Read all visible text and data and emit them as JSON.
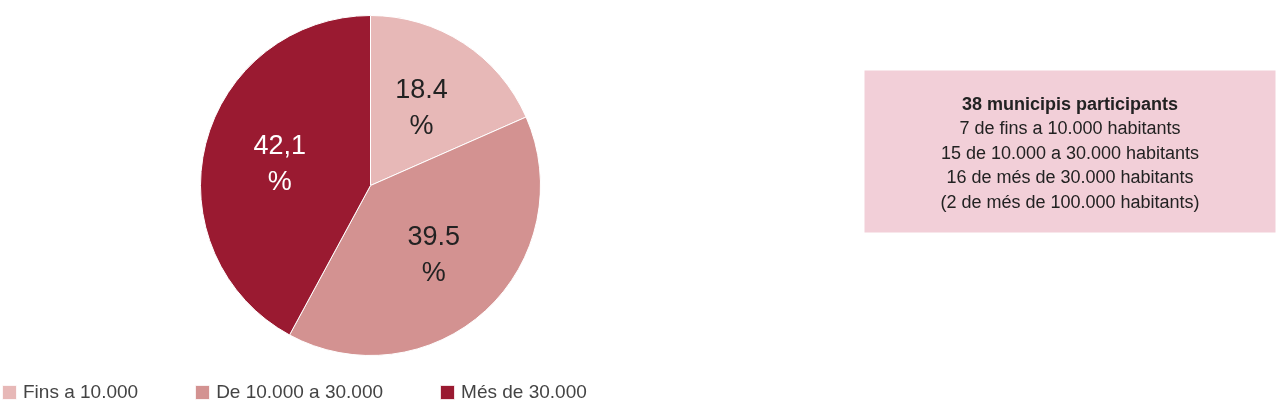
{
  "chart_data": {
    "type": "pie",
    "title": "38 municipis participants",
    "categories": [
      "Fins a 10.000",
      "De 10.000 a 30.000",
      "Més de 30.000"
    ],
    "values": [
      18.4,
      39.5,
      42.1
    ],
    "colors": [
      "#e7b8b7",
      "#d39291",
      "#9a1a31"
    ],
    "value_labels": [
      "18.4 %",
      "39.5 %",
      "42,1 %"
    ],
    "legend": "bottom",
    "annotations": [
      "7 de fins a 10.000 habitants",
      "15 de 10.000 a 30.000 habitants",
      "16 de més de 30.000 habitants",
      "(2 de més de 100.000 habitants)"
    ]
  }
}
